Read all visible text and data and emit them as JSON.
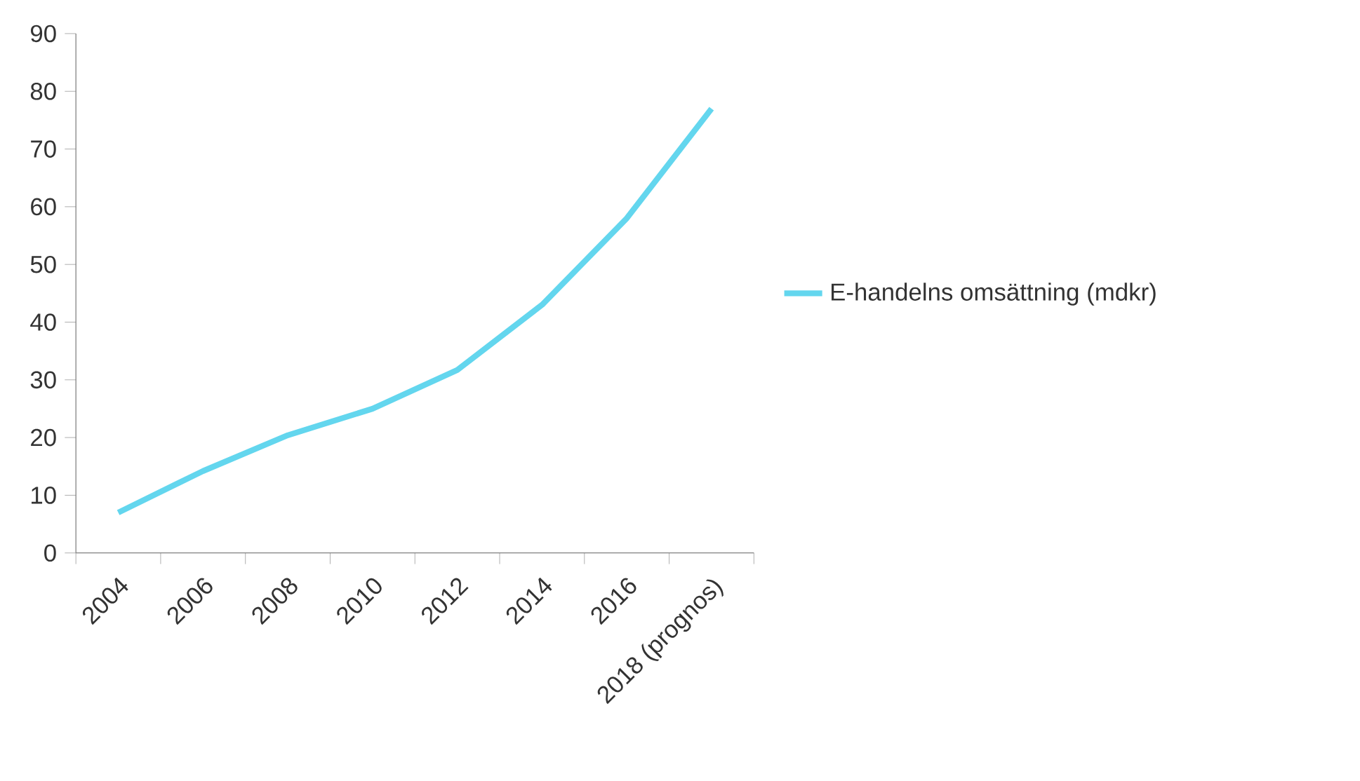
{
  "chart_data": {
    "type": "line",
    "categories": [
      "2004",
      "2006",
      "2008",
      "2010",
      "2012",
      "2014",
      "2016",
      "2018 (prognos)"
    ],
    "series": [
      {
        "name": "E-handelns omsättning (mdkr)",
        "color": "#63d6ee",
        "values": [
          7,
          14.2,
          20.4,
          25,
          31.7,
          43,
          58,
          77
        ]
      }
    ],
    "ylim": [
      0,
      90
    ],
    "yticks": [
      0,
      10,
      20,
      30,
      40,
      50,
      60,
      70,
      80,
      90
    ],
    "grid": false,
    "legend": "right",
    "marker": "none",
    "line_style": "solid"
  }
}
